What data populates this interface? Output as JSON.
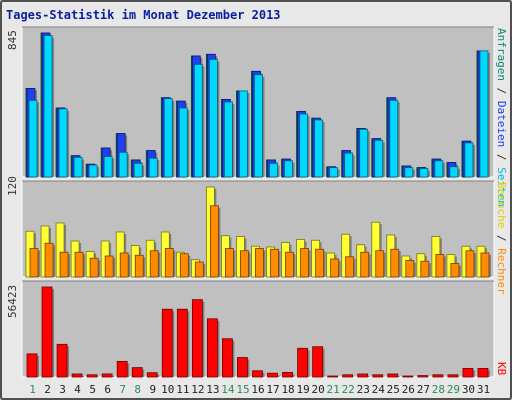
{
  "title": "Tages-Statistik im Monat Dezember 2013",
  "colors": {
    "background": "#c0c0c0",
    "anfragen": "#0b8a70",
    "dateien": "#1f3ff0",
    "seiten": "#00d8ff",
    "besuche": "#ffff33",
    "rechner": "#ff8c00",
    "kb": "#ff0000",
    "weekend_label": "#2e8b57"
  },
  "legend_top": {
    "anfragen": "Anfragen",
    "sep1": " / ",
    "dateien": "Dateien",
    "sep2": " / ",
    "seiten": "Seiten"
  },
  "legend_mid": {
    "besuche": "Besuche",
    "sep": " / ",
    "rechner": "Rechner"
  },
  "legend_bottom": {
    "kb": "KB"
  },
  "chart_data": [
    {
      "type": "bar",
      "panel": "Anfragen / Dateien / Seiten",
      "categories": [
        "1",
        "2",
        "3",
        "4",
        "5",
        "6",
        "7",
        "8",
        "9",
        "10",
        "11",
        "12",
        "13",
        "14",
        "15",
        "16",
        "17",
        "18",
        "19",
        "20",
        "21",
        "22",
        "23",
        "24",
        "25",
        "26",
        "27",
        "28",
        "29",
        "30",
        "31"
      ],
      "ymax_label": "845",
      "ylim": [
        0,
        845
      ],
      "series": [
        {
          "name": "Anfragen",
          "values": [
            520,
            845,
            405,
            125,
            75,
            170,
            255,
            100,
            155,
            465,
            445,
            710,
            720,
            455,
            505,
            620,
            100,
            105,
            385,
            345,
            60,
            155,
            285,
            225,
            465,
            65,
            55,
            105,
            85,
            210,
            740
          ]
        },
        {
          "name": "Dateien",
          "values": [
            520,
            845,
            405,
            125,
            75,
            170,
            255,
            100,
            155,
            465,
            445,
            710,
            720,
            455,
            505,
            620,
            100,
            105,
            385,
            345,
            60,
            155,
            285,
            225,
            465,
            65,
            55,
            105,
            85,
            210,
            740
          ]
        },
        {
          "name": "Seiten",
          "values": [
            450,
            830,
            400,
            115,
            70,
            120,
            145,
            80,
            110,
            460,
            405,
            660,
            690,
            440,
            505,
            600,
            80,
            95,
            370,
            335,
            55,
            140,
            280,
            215,
            450,
            55,
            50,
            95,
            60,
            200,
            740
          ]
        }
      ]
    },
    {
      "type": "bar",
      "panel": "Besuche / Rechner",
      "categories": [
        "1",
        "2",
        "3",
        "4",
        "5",
        "6",
        "7",
        "8",
        "9",
        "10",
        "11",
        "12",
        "13",
        "14",
        "15",
        "16",
        "17",
        "18",
        "19",
        "20",
        "21",
        "22",
        "23",
        "24",
        "25",
        "26",
        "27",
        "28",
        "29",
        "30",
        "31"
      ],
      "ymax_label": "120",
      "ylim": [
        0,
        120
      ],
      "series": [
        {
          "name": "Besuche",
          "values": [
            61,
            68,
            72,
            48,
            34,
            48,
            60,
            42,
            49,
            60,
            33,
            23,
            120,
            55,
            54,
            41,
            40,
            46,
            50,
            49,
            32,
            57,
            43,
            73,
            56,
            28,
            31,
            54,
            30,
            41,
            41
          ]
        },
        {
          "name": "Rechner",
          "values": [
            38,
            45,
            33,
            33,
            25,
            28,
            32,
            29,
            35,
            38,
            31,
            20,
            95,
            38,
            35,
            38,
            37,
            33,
            38,
            37,
            24,
            27,
            33,
            35,
            37,
            22,
            21,
            30,
            18,
            35,
            32
          ]
        }
      ]
    },
    {
      "type": "bar",
      "panel": "KB",
      "categories": [
        "1",
        "2",
        "3",
        "4",
        "5",
        "6",
        "7",
        "8",
        "9",
        "10",
        "11",
        "12",
        "13",
        "14",
        "15",
        "16",
        "17",
        "18",
        "19",
        "20",
        "21",
        "22",
        "23",
        "24",
        "25",
        "26",
        "27",
        "28",
        "29",
        "30",
        "31"
      ],
      "ymax_label": "56423",
      "ylim": [
        0,
        56423
      ],
      "series": [
        {
          "name": "KB",
          "values": [
            14500,
            56423,
            20500,
            1900,
            1400,
            1900,
            9800,
            5900,
            2700,
            42500,
            42500,
            48500,
            36500,
            24000,
            12200,
            3900,
            2400,
            2900,
            18000,
            19000,
            400,
            1400,
            1900,
            1400,
            1900,
            400,
            900,
            1400,
            1400,
            5400,
            5400
          ]
        }
      ]
    }
  ],
  "x_labels": [
    {
      "text": "1",
      "weekend": true
    },
    {
      "text": "2",
      "weekend": false
    },
    {
      "text": "3",
      "weekend": false
    },
    {
      "text": "4",
      "weekend": false
    },
    {
      "text": "5",
      "weekend": false
    },
    {
      "text": "6",
      "weekend": false
    },
    {
      "text": "7",
      "weekend": true
    },
    {
      "text": "8",
      "weekend": true
    },
    {
      "text": "9",
      "weekend": false
    },
    {
      "text": "10",
      "weekend": false
    },
    {
      "text": "11",
      "weekend": false
    },
    {
      "text": "12",
      "weekend": false
    },
    {
      "text": "13",
      "weekend": false
    },
    {
      "text": "14",
      "weekend": true
    },
    {
      "text": "15",
      "weekend": true
    },
    {
      "text": "16",
      "weekend": false
    },
    {
      "text": "17",
      "weekend": false
    },
    {
      "text": "18",
      "weekend": false
    },
    {
      "text": "19",
      "weekend": false
    },
    {
      "text": "20",
      "weekend": false
    },
    {
      "text": "21",
      "weekend": true
    },
    {
      "text": "22",
      "weekend": true
    },
    {
      "text": "23",
      "weekend": false
    },
    {
      "text": "24",
      "weekend": false
    },
    {
      "text": "25",
      "weekend": false
    },
    {
      "text": "26",
      "weekend": false
    },
    {
      "text": "27",
      "weekend": false
    },
    {
      "text": "28",
      "weekend": true
    },
    {
      "text": "29",
      "weekend": true
    },
    {
      "text": "30",
      "weekend": false
    },
    {
      "text": "31",
      "weekend": false
    }
  ]
}
